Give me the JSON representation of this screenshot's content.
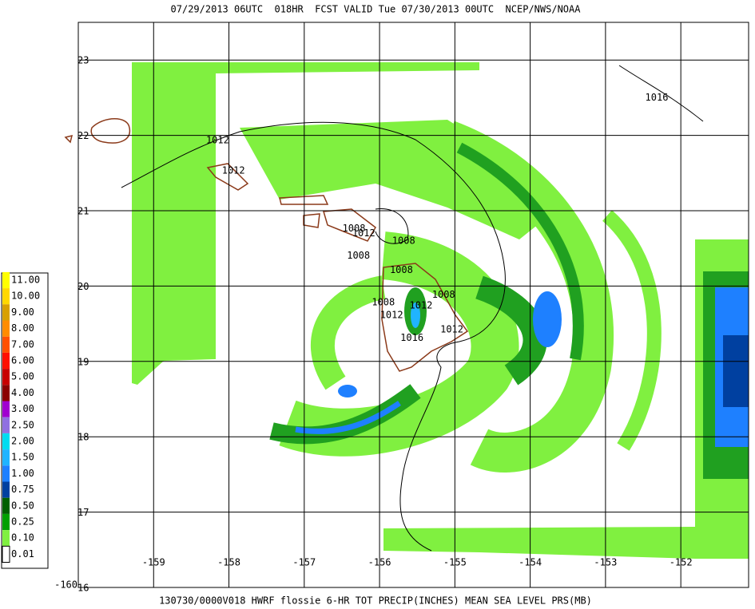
{
  "header": {
    "title": "07/29/2013 06UTC  018HR  FCST VALID Tue 07/30/2013 00UTC  NCEP/NWS/NOAA"
  },
  "footer": {
    "caption": "130730/0000V018 HWRF flossie 6-HR TOT PRECIP(INCHES) MEAN SEA LEVEL PRS(MB)"
  },
  "map": {
    "lon_range": [
      -160,
      -151.1
    ],
    "lat_range": [
      16,
      23.5
    ],
    "lon_ticks": [
      -160,
      -159,
      -158,
      -157,
      -156,
      -155,
      -154,
      -153,
      -152
    ],
    "lat_ticks": [
      16,
      17,
      18,
      19,
      20,
      21,
      22,
      23
    ],
    "isobar_labels": [
      {
        "text": "1016",
        "lon": -152.32,
        "lat": 22.5
      },
      {
        "text": "1012",
        "lon": -158.15,
        "lat": 21.93
      },
      {
        "text": "1012",
        "lon": -157.94,
        "lat": 21.53
      },
      {
        "text": "1008",
        "lon": -156.34,
        "lat": 20.76
      },
      {
        "text": "1012",
        "lon": -156.21,
        "lat": 20.7
      },
      {
        "text": "1008",
        "lon": -155.68,
        "lat": 20.6
      },
      {
        "text": "1008",
        "lon": -156.28,
        "lat": 20.4
      },
      {
        "text": "1008",
        "lon": -155.71,
        "lat": 20.21
      },
      {
        "text": "1008",
        "lon": -155.15,
        "lat": 19.88
      },
      {
        "text": "1008",
        "lon": -155.95,
        "lat": 19.78
      },
      {
        "text": "1012",
        "lon": -155.45,
        "lat": 19.74
      },
      {
        "text": "1012",
        "lon": -155.84,
        "lat": 19.61
      },
      {
        "text": "1012",
        "lon": -155.04,
        "lat": 19.42
      },
      {
        "text": "1016",
        "lon": -155.57,
        "lat": 19.31
      }
    ]
  },
  "legend": [
    {
      "label": "11.00",
      "color": "#ffff00"
    },
    {
      "label": "10.00",
      "color": "#ffd800"
    },
    {
      "label": "9.00",
      "color": "#d8a000"
    },
    {
      "label": "8.00",
      "color": "#ff8c00"
    },
    {
      "label": "7.00",
      "color": "#ff5000"
    },
    {
      "label": "6.00",
      "color": "#ff1000"
    },
    {
      "label": "5.00",
      "color": "#c80000"
    },
    {
      "label": "4.00",
      "color": "#8b0000"
    },
    {
      "label": "3.00",
      "color": "#a000d0"
    },
    {
      "label": "2.50",
      "color": "#9070e0"
    },
    {
      "label": "2.00",
      "color": "#00dcf0"
    },
    {
      "label": "1.50",
      "color": "#20b4ff"
    },
    {
      "label": "1.00",
      "color": "#1e80ff"
    },
    {
      "label": "0.75",
      "color": "#0040a0"
    },
    {
      "label": "0.50",
      "color": "#006000"
    },
    {
      "label": "0.25",
      "color": "#00a000"
    },
    {
      "label": "0.10",
      "color": "#80f040"
    },
    {
      "label": "0.01",
      "color": "#ffffff"
    }
  ]
}
